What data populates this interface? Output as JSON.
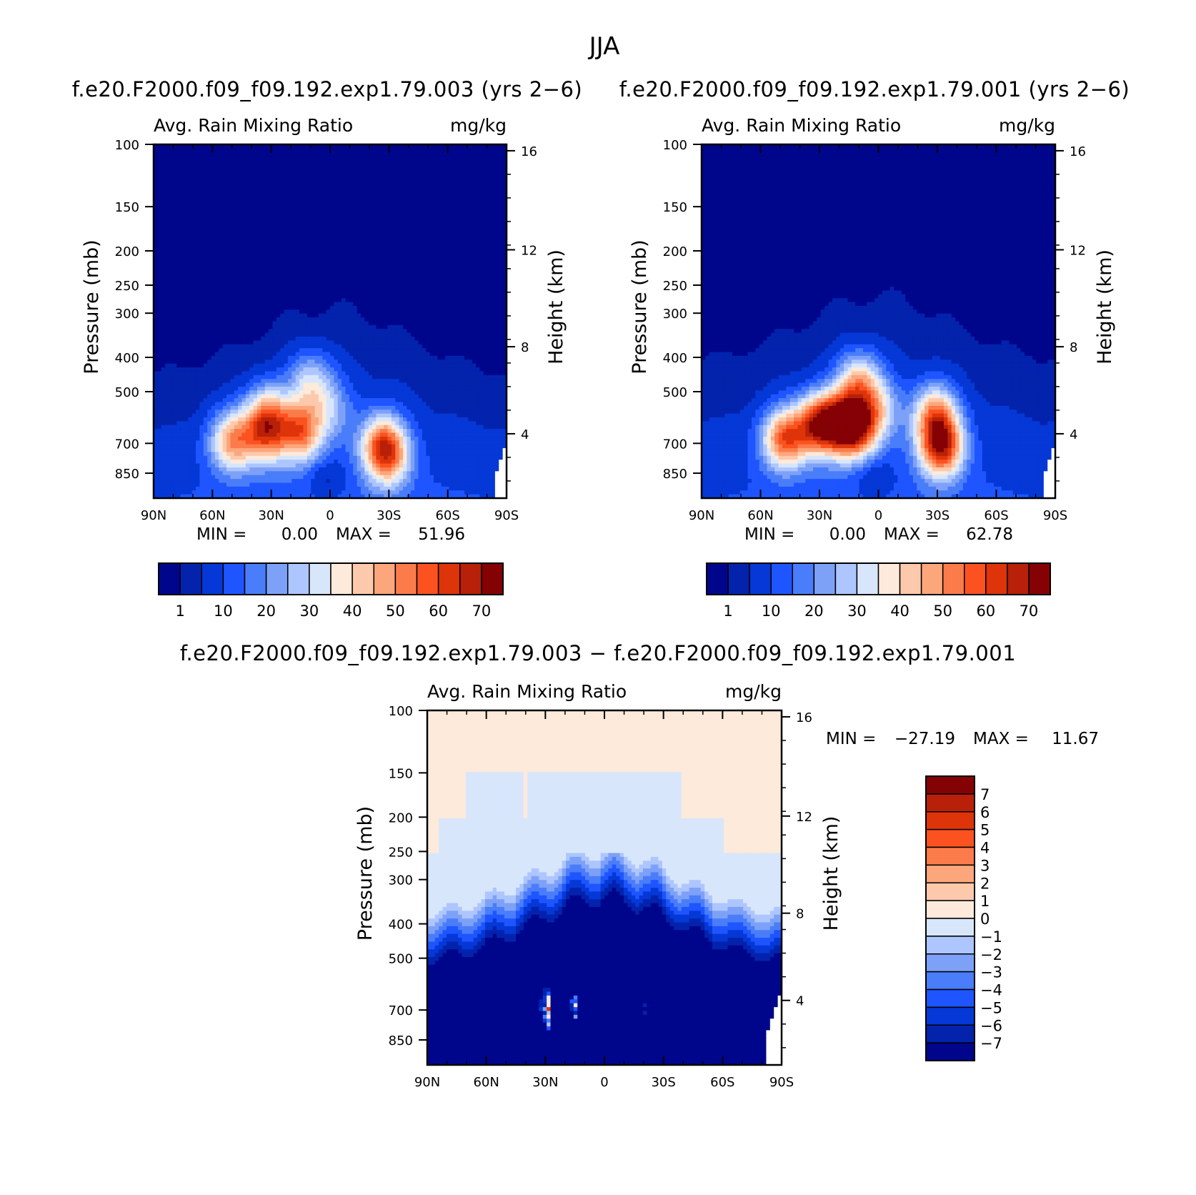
{
  "figure": {
    "title": "JJA",
    "top_left_title": "f.e20.F2000.f09_f09.192.exp1.79.003 (yrs 2−6)",
    "top_right_title": "f.e20.F2000.f09_f09.192.exp1.79.001 (yrs 2−6)",
    "bottom_title": "f.e20.F2000.f09_f09.192.exp1.79.003 − f.e20.F2000.f09_f09.192.exp1.79.001"
  },
  "colors": {
    "abs_scale": [
      "#00068c",
      "#0323ad",
      "#0538d6",
      "#1e55ff",
      "#4a7df9",
      "#7ea1f8",
      "#adc6ff",
      "#d8e6fb",
      "#fdeadb",
      "#fdc9ac",
      "#fca67c",
      "#fb7c4a",
      "#fb5220",
      "#de3409",
      "#b82009",
      "#840104"
    ],
    "diff_scale": [
      "#00068c",
      "#0323ad",
      "#0538d6",
      "#1e55ff",
      "#4a7df9",
      "#7ea1f8",
      "#adc6ff",
      "#d8e6fb",
      "#fdeadb",
      "#fdc9ac",
      "#fca67c",
      "#fb7c4a",
      "#fb5220",
      "#de3409",
      "#b82009",
      "#840104"
    ]
  },
  "chart_data": [
    {
      "type": "heatmap",
      "title": "f.e20.F2000.f09_f09.192.exp1.79.003 (yrs 2−6)",
      "left_string": "Avg. Rain Mixing Ratio",
      "right_string": "mg/kg",
      "ylabel": "Pressure (mb)",
      "y2label": "Height (km)",
      "x_ticks": [
        "90N",
        "60N",
        "30N",
        "0",
        "30S",
        "60S",
        "90S"
      ],
      "y_ticks": [
        "100",
        "150",
        "200",
        "250",
        "300",
        "400",
        "500",
        "700",
        "850"
      ],
      "y2_ticks": [
        "16",
        "12",
        "8",
        "4"
      ],
      "ylim": [
        100,
        1000
      ],
      "y_scale": "log",
      "min_label": "MIN =",
      "min": "0.00",
      "max_label": "MAX =",
      "max": "51.96",
      "colorbar_labels": [
        "1",
        "10",
        "20",
        "30",
        "40",
        "50",
        "60",
        "70"
      ],
      "blobs": [
        {
          "lat": 50,
          "p": 690,
          "amp": 40
        },
        {
          "lat": 33,
          "p": 660,
          "amp": 37
        },
        {
          "lat": 15,
          "p": 650,
          "amp": 44
        },
        {
          "lat": 10,
          "p": 470,
          "amp": 24
        },
        {
          "lat": -27,
          "p": 700,
          "amp": 40
        },
        {
          "lat": -30,
          "p": 780,
          "amp": 26
        },
        {
          "lat": 0,
          "p": 560,
          "amp": 16
        },
        {
          "lat": 32,
          "p": 570,
          "amp": 28
        }
      ]
    },
    {
      "type": "heatmap",
      "title": "f.e20.F2000.f09_f09.192.exp1.79.001 (yrs 2−6)",
      "left_string": "Avg. Rain Mixing Ratio",
      "right_string": "mg/kg",
      "ylabel": "Pressure (mb)",
      "y2label": "Height (km)",
      "x_ticks": [
        "90N",
        "60N",
        "30N",
        "0",
        "30S",
        "60S",
        "90S"
      ],
      "y_ticks": [
        "100",
        "150",
        "200",
        "250",
        "300",
        "400",
        "500",
        "700",
        "850"
      ],
      "y2_ticks": [
        "16",
        "12",
        "8",
        "4"
      ],
      "ylim": [
        100,
        1000
      ],
      "y_scale": "log",
      "min_label": "MIN =",
      "min": "0.00",
      "max_label": "MAX =",
      "max": "62.78",
      "colorbar_labels": [
        "1",
        "10",
        "20",
        "30",
        "40",
        "50",
        "60",
        "70"
      ],
      "blobs": [
        {
          "lat": 48,
          "p": 680,
          "amp": 48
        },
        {
          "lat": 32,
          "p": 620,
          "amp": 44
        },
        {
          "lat": 12,
          "p": 630,
          "amp": 58
        },
        {
          "lat": 10,
          "p": 470,
          "amp": 34
        },
        {
          "lat": -32,
          "p": 720,
          "amp": 55
        },
        {
          "lat": -29,
          "p": 580,
          "amp": 40
        },
        {
          "lat": 22,
          "p": 610,
          "amp": 38
        },
        {
          "lat": 0,
          "p": 560,
          "amp": 22
        }
      ]
    },
    {
      "type": "heatmap",
      "title": "f.e20.F2000.f09_f09.192.exp1.79.003 − f.e20.F2000.f09_f09.192.exp1.79.001",
      "left_string": "Avg. Rain Mixing Ratio",
      "right_string": "mg/kg",
      "ylabel": "Pressure (mb)",
      "y2label": "Height (km)",
      "x_ticks": [
        "90N",
        "60N",
        "30N",
        "0",
        "30S",
        "60S",
        "90S"
      ],
      "y_ticks": [
        "100",
        "150",
        "200",
        "250",
        "300",
        "400",
        "500",
        "700",
        "850"
      ],
      "y2_ticks": [
        "16",
        "12",
        "8",
        "4"
      ],
      "ylim": [
        100,
        1000
      ],
      "y_scale": "log",
      "min_label": "MIN =",
      "min": "−27.19",
      "max_label": "MAX =",
      "max": "11.67",
      "colorbar_labels": [
        "7",
        "6",
        "5",
        "4",
        "3",
        "2",
        "1",
        "0",
        "−1",
        "−2",
        "−3",
        "−4",
        "−5",
        "−6",
        "−7"
      ],
      "blobs_pos": [
        {
          "lat": 30,
          "p": 700,
          "amp": 12
        },
        {
          "lat": 16,
          "p": 700,
          "amp": 12
        },
        {
          "lat": -18,
          "p": 700,
          "amp": 4
        }
      ]
    }
  ]
}
